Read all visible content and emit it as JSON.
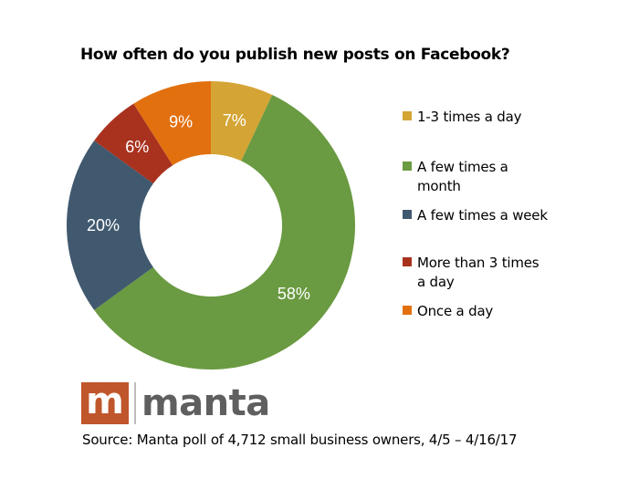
{
  "title": "How often do you publish new posts on Facebook?",
  "chart_data": {
    "type": "pie",
    "variant": "donut",
    "title": "How often do you publish new posts on Facebook?",
    "categories": [
      "1-3 times a day",
      "A few times a month",
      "A few times a week",
      "More than 3 times a day",
      "Once a day"
    ],
    "values": [
      7,
      58,
      20,
      6,
      9
    ],
    "labels": [
      "7%",
      "58%",
      "20%",
      "6%",
      "9%"
    ],
    "colors": [
      "#d4a435",
      "#6a9a41",
      "#41596f",
      "#a8321e",
      "#e2700f"
    ],
    "start_angle": "12 o'clock, clockwise",
    "legend_position": "right",
    "unit": "%"
  },
  "legend": [
    {
      "label": "1-3 times a day",
      "color": "#d4a435"
    },
    {
      "label": "A few times a month",
      "color": "#6a9a41"
    },
    {
      "label": "A few times a week",
      "color": "#41596f"
    },
    {
      "label": "More than 3 times a day",
      "color": "#a8321e"
    },
    {
      "label": "Once a day",
      "color": "#e2700f"
    }
  ],
  "logo": {
    "mark": "m",
    "text": "manta",
    "color": "#c0562b"
  },
  "source": "Source: Manta poll of 4,712 small business owners, 4/5 – 4/16/17"
}
